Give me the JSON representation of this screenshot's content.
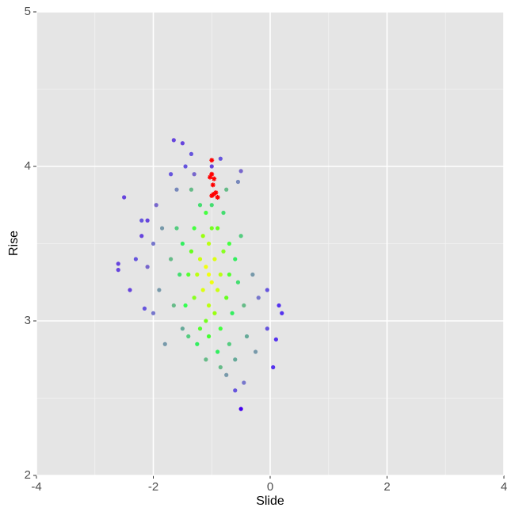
{
  "chart_data": {
    "type": "scatter",
    "x_label": "Slide",
    "y_label": "Rise",
    "xlim": [
      -4,
      4
    ],
    "ylim": [
      2,
      5
    ],
    "xticks": [
      -4,
      -2,
      0,
      2,
      4
    ],
    "yticks": [
      2,
      3,
      4,
      5
    ],
    "grid": true,
    "x": [
      -1.05,
      -1.1,
      -1.0,
      -0.95,
      -1.15,
      -1.2,
      -0.9,
      -1.05,
      -1.05,
      -1.25,
      -0.85,
      -1.15,
      -0.95,
      -1.3,
      -0.8,
      -1.0,
      -1.1,
      -1.35,
      -0.75,
      -0.9,
      -1.2,
      -1.4,
      -0.7,
      -1.05,
      -1.1,
      -0.85,
      -1.3,
      -0.7,
      -1.45,
      -1.5,
      -0.6,
      -0.65,
      -1.25,
      -0.9,
      -1.0,
      -1.2,
      -0.8,
      -1.55,
      -0.55,
      -1.4,
      -0.7,
      -1.6,
      -0.5,
      -1.1,
      -0.85,
      -1.35,
      -0.75,
      -1.7,
      -0.45,
      -1.65,
      -0.4,
      -1.5,
      -0.6,
      -1.8,
      -1.85,
      -1.9,
      -0.3,
      -0.25,
      -0.75,
      -1.6,
      -0.55,
      -2.0,
      -2.0,
      -0.45,
      -0.2,
      -2.1,
      -1.95,
      -1.3,
      -0.5,
      -2.2,
      -2.3,
      -2.15,
      -1.7,
      -1.45,
      -1.35,
      -0.85,
      -0.05,
      -0.05,
      -0.6,
      -2.5,
      -2.6,
      -2.6,
      -2.4,
      -1.5,
      -1.65,
      -1.0,
      -2.1,
      -2.2,
      0.15,
      0.2,
      0.1,
      0.05,
      -0.5
    ],
    "values": [
      3.3,
      3.35,
      3.25,
      3.4,
      3.2,
      3.4,
      3.2,
      3.5,
      3.1,
      3.3,
      3.3,
      3.55,
      3.05,
      3.15,
      3.45,
      3.6,
      3.0,
      3.45,
      3.15,
      3.6,
      2.95,
      3.3,
      3.3,
      2.9,
      3.7,
      2.95,
      3.6,
      3.5,
      3.1,
      3.5,
      3.4,
      3.05,
      2.85,
      2.8,
      3.75,
      3.75,
      3.7,
      3.3,
      3.25,
      2.9,
      2.85,
      3.6,
      3.55,
      2.75,
      2.7,
      3.85,
      3.85,
      3.4,
      3.1,
      3.1,
      2.9,
      2.95,
      2.75,
      2.85,
      3.6,
      3.2,
      3.3,
      2.8,
      2.65,
      3.85,
      3.9,
      3.5,
      3.05,
      2.6,
      3.15,
      3.35,
      3.75,
      3.95,
      3.97,
      3.65,
      3.4,
      3.08,
      3.95,
      4.0,
      4.08,
      4.05,
      3.2,
      2.95,
      2.55,
      3.8,
      3.37,
      3.33,
      3.2,
      4.15,
      4.17,
      4.0,
      3.65,
      3.55,
      3.1,
      3.05,
      2.88,
      2.7,
      2.43
    ],
    "colors": [
      "#f0ff10",
      "#f0ff10",
      "#f0ff10",
      "#ddff10",
      "#ddff10",
      "#ccff10",
      "#ccff10",
      "#bbff10",
      "#bbff10",
      "#bbff10",
      "#bbff10",
      "#99ff10",
      "#99ff10",
      "#88ff20",
      "#88ff20",
      "#77ff20",
      "#77ff20",
      "#66ff20",
      "#66ff20",
      "#66ff20",
      "#55ff30",
      "#55ff30",
      "#55ff30",
      "#44ff30",
      "#44ff40",
      "#44ff40",
      "#44ff40",
      "#44ff40",
      "#33ff50",
      "#33ee60",
      "#33ee60",
      "#33ee60",
      "#33ee60",
      "#33ee60",
      "#44dd70",
      "#44dd70",
      "#44dd70",
      "#44dd70",
      "#44dd70",
      "#55cc80",
      "#55cc80",
      "#55cc80",
      "#55cc80",
      "#66bb88",
      "#66bb88",
      "#66bb88",
      "#66bb88",
      "#66bb88",
      "#66bb88",
      "#66bb88",
      "#66aa99",
      "#66aa99",
      "#66aa99",
      "#7799aa",
      "#7799aa",
      "#7799aa",
      "#7799aa",
      "#7799aa",
      "#7799aa",
      "#7788bb",
      "#7788bb",
      "#7777cc",
      "#7777cc",
      "#7777cc",
      "#7777cc",
      "#7766cc",
      "#7766cc",
      "#7766cc",
      "#7766cc",
      "#6655dd",
      "#6655dd",
      "#6655dd",
      "#6655dd",
      "#6655dd",
      "#6655dd",
      "#6655dd",
      "#6655dd",
      "#6655dd",
      "#6655dd",
      "#6644dd",
      "#6644dd",
      "#6644dd",
      "#6644dd",
      "#6644dd",
      "#6644dd",
      "#6644dd",
      "#6644dd",
      "#6644dd",
      "#5533ee",
      "#5533ee",
      "#5533ee",
      "#5533ee",
      "#4400ee"
    ],
    "highlight": {
      "color": "#ff0000",
      "marker": "asterisk",
      "x": [
        -1.0,
        -1.03,
        -1.0,
        -0.98,
        -0.97,
        -1.0,
        -0.93,
        -0.9,
        -0.96
      ],
      "values": [
        4.04,
        3.93,
        3.95,
        3.88,
        3.82,
        3.81,
        3.83,
        3.8,
        3.92
      ]
    }
  }
}
